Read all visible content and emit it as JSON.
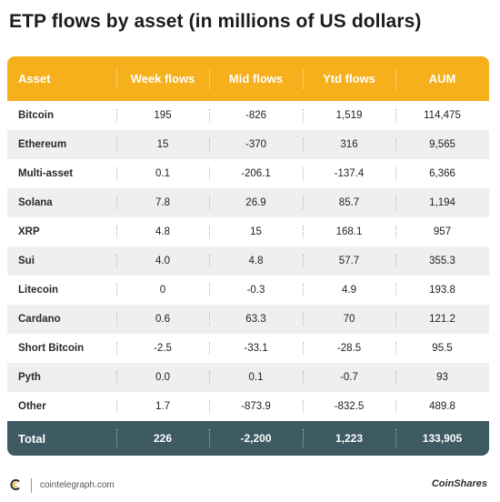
{
  "title": "ETP flows by asset (in millions of US dollars)",
  "chart_data": {
    "type": "table",
    "columns": [
      "Asset",
      "Week flows",
      "Mid flows",
      "Ytd flows",
      "AUM"
    ],
    "rows": [
      [
        "Bitcoin",
        "195",
        "-826",
        "1,519",
        "114,475"
      ],
      [
        "Ethereum",
        "15",
        "-370",
        "316",
        "9,565"
      ],
      [
        "Multi-asset",
        "0.1",
        "-206.1",
        "-137.4",
        "6,366"
      ],
      [
        "Solana",
        "7.8",
        "26.9",
        "85.7",
        "1,194"
      ],
      [
        "XRP",
        "4.8",
        "15",
        "168.1",
        "957"
      ],
      [
        "Sui",
        "4.0",
        "4.8",
        "57.7",
        "355.3"
      ],
      [
        "Litecoin",
        "0",
        "-0.3",
        "4.9",
        "193.8"
      ],
      [
        "Cardano",
        "0.6",
        "63.3",
        "70",
        "121.2"
      ],
      [
        "Short Bitcoin",
        "-2.5",
        "-33.1",
        "-28.5",
        "95.5"
      ],
      [
        "Pyth",
        "0.0",
        "0.1",
        "-0.7",
        "93"
      ],
      [
        "Other",
        "1.7",
        "-873.9",
        "-832.5",
        "489.8"
      ]
    ],
    "total": [
      "Total",
      "226",
      "-2,200",
      "1,223",
      "133,905"
    ]
  },
  "footer": {
    "source": "cointelegraph.com",
    "brand": "CoinShares"
  },
  "colors": {
    "header": "#f5b01c",
    "total": "#3e5a63",
    "stripe": "#efefef"
  }
}
